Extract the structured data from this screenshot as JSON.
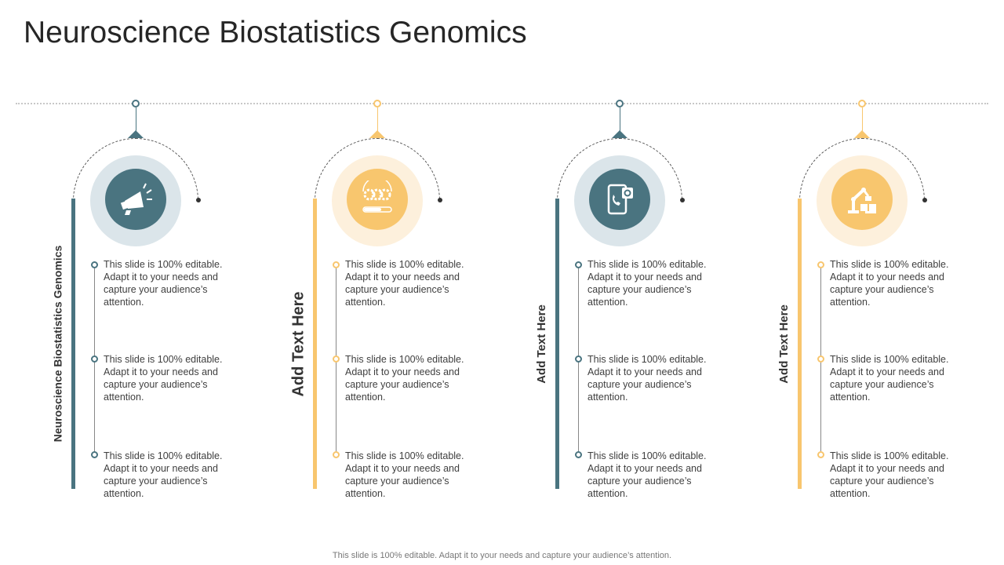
{
  "title": "Neuroscience Biostatistics Genomics",
  "footer": "This slide is 100% editable. Adapt it to your needs and capture your audience’s attention.",
  "colors": {
    "teal": "#4a7480",
    "yellow": "#f8c66e",
    "teal_ring": "#dbe5ea",
    "yellow_ring": "#fdf0dc"
  },
  "columns": [
    {
      "label": "Neuroscience Biostatistics Genomics",
      "icon": "megaphone-icon",
      "accent": "teal",
      "items": [
        "This slide is 100% editable. Adapt it to your needs and capture your audience’s attention.",
        "This slide is 100% editable. Adapt it to your needs and capture your audience’s attention.",
        "This slide is 100% editable. Adapt it to your needs and capture your audience’s attention."
      ]
    },
    {
      "label": "Add Text Here",
      "icon": "gears-progress-icon",
      "accent": "yellow",
      "items": [
        "This slide is 100% editable. Adapt it to your needs and capture your audience’s attention.",
        "This slide is 100% editable. Adapt it to your needs and capture your audience’s attention.",
        "This slide is 100% editable. Adapt it to your needs and capture your audience’s attention."
      ]
    },
    {
      "label": "Add Text Here",
      "icon": "phone-settings-icon",
      "accent": "teal",
      "items": [
        "This slide is 100% editable. Adapt it to your needs and capture your audience’s attention.",
        "This slide is 100% editable. Adapt it to your needs and capture your audience’s attention.",
        "This slide is 100% editable. Adapt it to your needs and capture your audience’s attention."
      ]
    },
    {
      "label": "Add Text Here",
      "icon": "robot-arm-icon",
      "accent": "yellow",
      "items": [
        "This slide is 100% editable. Adapt it to your needs and capture your audience’s attention.",
        "This slide is 100% editable. Adapt it to your needs and capture your audience’s attention.",
        "This slide is 100% editable. Adapt it to your needs and capture your audience’s attention."
      ]
    }
  ]
}
